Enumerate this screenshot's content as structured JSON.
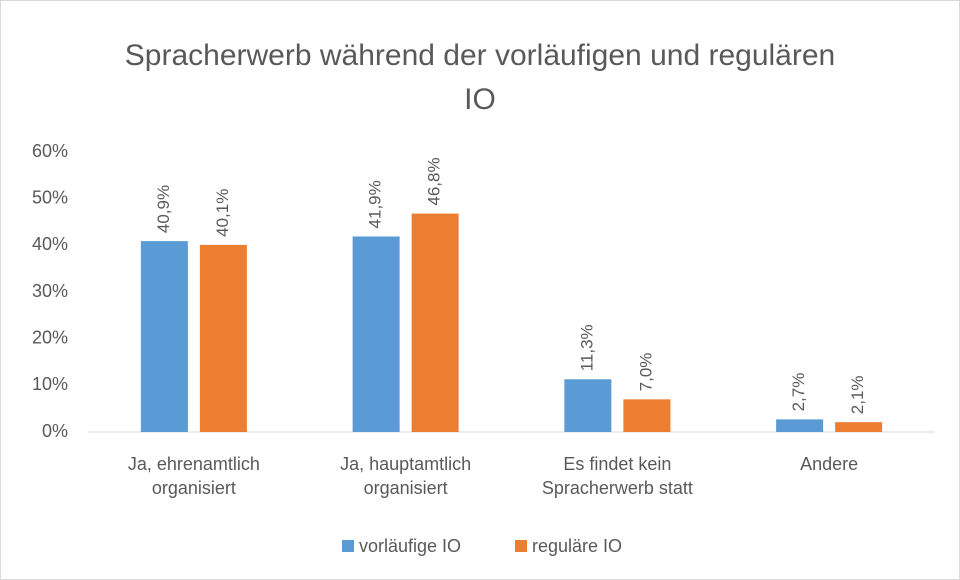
{
  "chart_data": {
    "type": "bar",
    "title": "Spracherwerb während der vorläufigen und regulären IO",
    "categories": [
      "Ja, ehrenamtlich organisiert",
      "Ja, hauptamtlich organisiert",
      "Es findet kein Spracherwerb statt",
      "Andere"
    ],
    "series": [
      {
        "name": "vorläufige IO",
        "color": "#5b9bd5",
        "values": [
          40.9,
          41.9,
          11.3,
          2.7
        ],
        "value_labels": [
          "40,9%",
          "41,9%",
          "11,3%",
          "2,7%"
        ]
      },
      {
        "name": "reguläre IO",
        "color": "#ed7d31",
        "values": [
          40.1,
          46.8,
          7.0,
          2.1
        ],
        "value_labels": [
          "40,1%",
          "46,8%",
          "7,0%",
          "2,1%"
        ]
      }
    ],
    "ylim": [
      0,
      60
    ],
    "yticks": [
      {
        "value": 0,
        "label": "0%"
      },
      {
        "value": 10,
        "label": "10%"
      },
      {
        "value": 20,
        "label": "20%"
      },
      {
        "value": 30,
        "label": "30%"
      },
      {
        "value": 40,
        "label": "40%"
      },
      {
        "value": 50,
        "label": "50%"
      },
      {
        "value": 60,
        "label": "60%"
      }
    ],
    "grid": false,
    "legend": "bottom"
  }
}
